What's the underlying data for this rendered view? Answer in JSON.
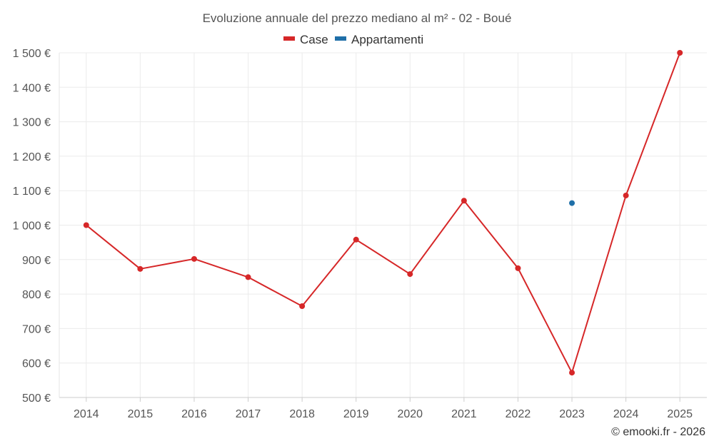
{
  "chart_data": {
    "type": "line",
    "title": "Evoluzione annuale del prezzo mediano al m² - 02 - Boué",
    "categories": [
      "2014",
      "2015",
      "2016",
      "2017",
      "2018",
      "2019",
      "2020",
      "2021",
      "2022",
      "2023",
      "2024",
      "2025"
    ],
    "ylim": [
      500,
      1500
    ],
    "yticks": [
      500,
      600,
      700,
      800,
      900,
      1000,
      1100,
      1200,
      1300,
      1400,
      1500
    ],
    "ytick_labels": [
      "500 €",
      "600 €",
      "700 €",
      "800 €",
      "900 €",
      "1 000 €",
      "1 100 €",
      "1 200 €",
      "1 300 €",
      "1 400 €",
      "1 500 €"
    ],
    "xlabel": "",
    "ylabel": "",
    "grid": true,
    "legend_position": "top-center",
    "series": [
      {
        "name": "Case",
        "color": "#d62728",
        "values": [
          1000,
          873,
          902,
          849,
          765,
          958,
          858,
          1071,
          875,
          572,
          1086,
          1500
        ]
      },
      {
        "name": "Appartamenti",
        "color": "#1f6fa8",
        "values": [
          null,
          null,
          null,
          null,
          null,
          null,
          null,
          null,
          null,
          1064,
          null,
          null
        ]
      }
    ]
  },
  "credit": "© emooki.fr - 2026"
}
